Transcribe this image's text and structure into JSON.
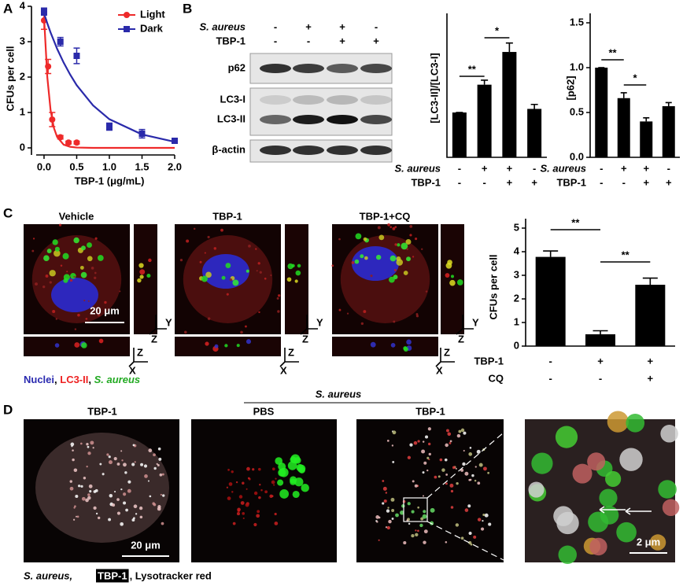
{
  "panel_labels": [
    "A",
    "B",
    "C",
    "D"
  ],
  "chart_data": [
    {
      "type": "line",
      "xlabel": "TBP-1 (μg/mL)",
      "ylabel": "CFUs per cell",
      "xlim": [
        -0.12,
        2
      ],
      "ylim": [
        -0.2,
        4
      ],
      "xticks": [
        {
          "value": 0,
          "label": "0.0"
        },
        {
          "value": 0.5,
          "label": "0.5"
        },
        {
          "value": 1,
          "label": "1.0"
        },
        {
          "value": 1.5,
          "label": "1.5"
        },
        {
          "value": 2,
          "label": "2.0"
        }
      ],
      "yticks": [
        0,
        1,
        2,
        3,
        4
      ],
      "legend": "upper right",
      "series": [
        {
          "name": "Light",
          "color": "#ee2a2a",
          "marker": "circle",
          "x": [
            0,
            0.0625,
            0.125,
            0.25,
            0.375,
            0.5
          ],
          "values": [
            3.6,
            2.3,
            0.8,
            0.3,
            0.15,
            0.15
          ],
          "errors": [
            0.25,
            0.2,
            0.2,
            0.05,
            0.04,
            0.04
          ],
          "fit_x": [
            0,
            0.05,
            0.1,
            0.15,
            0.2,
            0.3,
            0.4,
            0.5,
            0.75,
            1,
            1.5,
            2
          ],
          "fit_values": [
            3.7,
            2.0,
            1.07,
            0.57,
            0.31,
            0.09,
            0.03,
            0.01,
            0,
            0,
            0,
            0
          ]
        },
        {
          "name": "Dark",
          "color": "#2a2aaa",
          "marker": "square",
          "x": [
            0,
            0.25,
            0.5,
            1,
            1.5,
            2
          ],
          "values": [
            3.85,
            3.0,
            2.6,
            0.6,
            0.4,
            0.2
          ],
          "errors": [
            0.1,
            0.12,
            0.22,
            0.1,
            0.12,
            0.05
          ],
          "fit_x": [
            0,
            0.05,
            0.1,
            0.15,
            0.2,
            0.3,
            0.4,
            0.5,
            0.75,
            1,
            1.5,
            2
          ],
          "fit_values": [
            3.8,
            3.52,
            3.26,
            3.03,
            2.8,
            2.41,
            2.07,
            1.77,
            1.2,
            0.81,
            0.38,
            0.17
          ]
        }
      ]
    },
    {
      "type": "bar",
      "ylabel": "[LC3-II]/[LC3-I]",
      "ylim": [
        0,
        3
      ],
      "color": "#000000",
      "values": [
        1,
        1.62,
        2.35,
        1.08
      ],
      "errors": [
        0,
        0.1,
        0.2,
        0.1
      ],
      "annotations": [
        "**",
        "*"
      ],
      "conditions": [
        {
          "label": "S. aureus",
          "values": [
            "-",
            "+",
            "+",
            "-"
          ]
        },
        {
          "label": "TBP-1",
          "values": [
            "-",
            "-",
            "+",
            "+"
          ]
        }
      ]
    },
    {
      "type": "bar",
      "ylabel": "[p62]",
      "ylim": [
        0,
        1.5
      ],
      "color": "#000000",
      "yticks": [
        {
          "value": 0,
          "label": "0.0"
        },
        {
          "value": 0.5,
          "label": "0.5"
        },
        {
          "value": 1,
          "label": "1.0"
        },
        {
          "value": 1.5,
          "label": "1.5"
        }
      ],
      "values": [
        1,
        0.66,
        0.4,
        0.57
      ],
      "errors": [
        0,
        0.06,
        0.04,
        0.04
      ],
      "annotations": [
        "**",
        "*"
      ],
      "conditions": [
        {
          "label": "S. aureus",
          "values": [
            "-",
            "+",
            "+",
            "-"
          ]
        },
        {
          "label": "TBP-1",
          "values": [
            "-",
            "-",
            "+",
            "+"
          ]
        }
      ]
    },
    {
      "type": "bar",
      "ylabel": "CFUs per cell",
      "ylim": [
        0,
        5
      ],
      "yticks": [
        0,
        1,
        2,
        3,
        4,
        5
      ],
      "color": "#000000",
      "values": [
        3.78,
        0.5,
        2.6
      ],
      "errors": [
        0.25,
        0.15,
        0.28
      ],
      "annotations": [
        "**",
        "**"
      ],
      "conditions": [
        {
          "label": "TBP-1",
          "values": [
            "-",
            "+",
            "+"
          ]
        },
        {
          "label": "CQ",
          "values": [
            "-",
            "-",
            "+"
          ]
        }
      ]
    }
  ],
  "blot": {
    "conditions": [
      {
        "label": "S. aureus",
        "values": [
          "-",
          "+",
          "+",
          "-"
        ]
      },
      {
        "label": "TBP-1",
        "values": [
          "-",
          "-",
          "+",
          "+"
        ]
      }
    ],
    "bands": [
      "p62",
      "LC3-I",
      "LC3-II",
      "β-actin"
    ]
  },
  "panel_c": {
    "images": [
      "Vehicle",
      "TBP-1",
      "TBP-1+CQ"
    ],
    "scale_bar": "20 μm",
    "ortho_axes": {
      "y": "Y",
      "z": "Z",
      "x": "X"
    },
    "legend": [
      "Nuclei",
      ", ",
      "LC3-II",
      ", ",
      "S. aureus"
    ]
  },
  "panel_d": {
    "header": "S. aureus",
    "images": [
      "TBP-1",
      "PBS",
      "TBP-1"
    ],
    "scale_bars": [
      "20 μm",
      "2 μm"
    ],
    "legend": [
      "S. aureus,",
      "TBP-1",
      ", Lysotracker red"
    ]
  }
}
